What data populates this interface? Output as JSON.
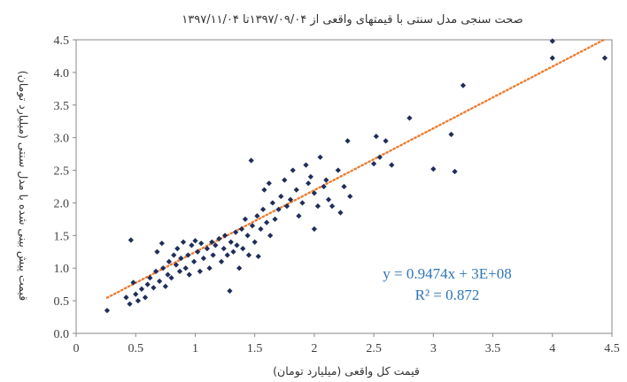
{
  "chart_data": {
    "type": "scatter",
    "title": "صحت سنجی مدل سنتی با قیمتهای واقعی از ۱۳۹۷/۰۹/۰۴تا ۱۳۹۷/۱۱/۰۴",
    "xlabel": "قیمت کل واقعی (میلیارد تومان)",
    "ylabel": "قیمت پیش بینی شده با مدل سنتی (میلیارد تومان)",
    "xlim": [
      0,
      4.5
    ],
    "ylim": [
      0,
      4.5
    ],
    "x_ticks": [
      "0",
      "0.5",
      "1",
      "1.5",
      "2",
      "2.5",
      "3",
      "3.5",
      "4",
      "4.5"
    ],
    "y_ticks": [
      "0.0",
      "0.5",
      "1.0",
      "1.5",
      "2.0",
      "2.5",
      "3.0",
      "3.5",
      "4.0",
      "4.5"
    ],
    "grid": false,
    "trendline": {
      "type": "linear",
      "slope": 0.9474,
      "intercept": 0.3,
      "x_range": [
        0.26,
        4.44
      ],
      "equation_label": "y = 0.9474x + 3E+08",
      "r2_label": "R² = 0.872"
    },
    "colors": {
      "points": "#1f2d5a",
      "trendline": "#ed7d31",
      "equation": "#2e75b6",
      "axis": "#888888"
    },
    "series": [
      {
        "points": [
          [
            0.26,
            0.35
          ],
          [
            0.42,
            0.55
          ],
          [
            0.45,
            0.45
          ],
          [
            0.48,
            0.78
          ],
          [
            0.5,
            0.6
          ],
          [
            0.52,
            0.5
          ],
          [
            0.55,
            0.68
          ],
          [
            0.58,
            0.55
          ],
          [
            0.46,
            1.43
          ],
          [
            0.6,
            0.75
          ],
          [
            0.62,
            0.85
          ],
          [
            0.65,
            0.7
          ],
          [
            0.67,
            0.95
          ],
          [
            0.68,
            1.25
          ],
          [
            0.7,
            0.8
          ],
          [
            0.72,
            1.38
          ],
          [
            0.73,
            1.0
          ],
          [
            0.75,
            0.72
          ],
          [
            0.77,
            0.9
          ],
          [
            0.78,
            1.1
          ],
          [
            0.8,
            0.85
          ],
          [
            0.82,
            1.2
          ],
          [
            0.84,
            1.05
          ],
          [
            0.85,
            1.3
          ],
          [
            0.87,
            0.95
          ],
          [
            0.88,
            1.15
          ],
          [
            0.9,
            1.4
          ],
          [
            0.92,
            1.0
          ],
          [
            0.94,
            1.2
          ],
          [
            0.95,
            0.9
          ],
          [
            0.97,
            1.35
          ],
          [
            0.99,
            1.1
          ],
          [
            1.0,
            1.42
          ],
          [
            1.02,
            1.25
          ],
          [
            1.04,
            0.95
          ],
          [
            1.05,
            1.38
          ],
          [
            1.07,
            1.15
          ],
          [
            1.1,
            1.3
          ],
          [
            1.12,
            1.0
          ],
          [
            1.14,
            1.4
          ],
          [
            1.15,
            1.2
          ],
          [
            1.17,
            1.35
          ],
          [
            1.2,
            1.45
          ],
          [
            1.22,
            1.1
          ],
          [
            1.24,
            1.3
          ],
          [
            1.25,
            1.5
          ],
          [
            1.27,
            1.2
          ],
          [
            1.29,
            0.65
          ],
          [
            1.3,
            1.4
          ],
          [
            1.32,
            1.25
          ],
          [
            1.34,
            1.55
          ],
          [
            1.35,
            1.35
          ],
          [
            1.37,
            1.0
          ],
          [
            1.39,
            1.6
          ],
          [
            1.4,
            1.3
          ],
          [
            1.42,
            1.75
          ],
          [
            1.44,
            1.5
          ],
          [
            1.45,
            1.2
          ],
          [
            1.47,
            2.65
          ],
          [
            1.48,
            1.65
          ],
          [
            1.5,
            1.4
          ],
          [
            1.52,
            1.8
          ],
          [
            1.53,
            1.18
          ],
          [
            1.55,
            1.6
          ],
          [
            1.57,
            1.9
          ],
          [
            1.58,
            2.2
          ],
          [
            1.6,
            1.7
          ],
          [
            1.62,
            2.3
          ],
          [
            1.63,
            1.5
          ],
          [
            1.65,
            2.0
          ],
          [
            1.67,
            1.75
          ],
          [
            1.7,
            1.9
          ],
          [
            1.72,
            2.1
          ],
          [
            1.75,
            2.35
          ],
          [
            1.77,
            1.95
          ],
          [
            1.8,
            2.05
          ],
          [
            1.82,
            2.5
          ],
          [
            1.85,
            2.2
          ],
          [
            1.87,
            1.8
          ],
          [
            1.9,
            2.0
          ],
          [
            1.93,
            2.58
          ],
          [
            1.95,
            2.3
          ],
          [
            1.97,
            2.4
          ],
          [
            2.0,
            2.15
          ],
          [
            2.0,
            1.6
          ],
          [
            2.03,
            1.95
          ],
          [
            2.05,
            2.7
          ],
          [
            2.08,
            2.25
          ],
          [
            2.1,
            2.35
          ],
          [
            2.12,
            2.05
          ],
          [
            2.15,
            1.95
          ],
          [
            2.2,
            2.5
          ],
          [
            2.22,
            1.85
          ],
          [
            2.25,
            2.25
          ],
          [
            2.28,
            2.95
          ],
          [
            2.3,
            2.1
          ],
          [
            2.5,
            2.6
          ],
          [
            2.52,
            3.02
          ],
          [
            2.55,
            2.7
          ],
          [
            2.6,
            2.95
          ],
          [
            2.65,
            2.58
          ],
          [
            2.8,
            3.3
          ],
          [
            3.0,
            2.52
          ],
          [
            3.15,
            3.05
          ],
          [
            3.18,
            2.48
          ],
          [
            3.25,
            3.8
          ],
          [
            4.0,
            4.48
          ],
          [
            4.0,
            4.22
          ],
          [
            4.44,
            4.22
          ]
        ]
      }
    ]
  }
}
